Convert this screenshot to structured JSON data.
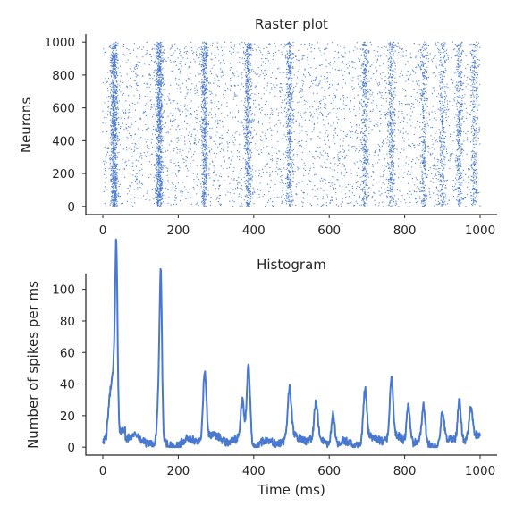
{
  "chart_data": [
    {
      "type": "scatter",
      "title": "Raster plot",
      "xlabel": "",
      "ylabel": "Neurons",
      "xlim": [
        -45,
        1045
      ],
      "ylim": [
        -50,
        1050
      ],
      "xticks": [
        0,
        200,
        400,
        600,
        800,
        1000
      ],
      "yticks": [
        0,
        200,
        400,
        600,
        800,
        1000
      ],
      "color": "#4878cf",
      "n_neurons": 1000,
      "duration_ms": 1000,
      "burst_times_ms": [
        30,
        150,
        270,
        385,
        495,
        695,
        765,
        850,
        900,
        945,
        985
      ],
      "burst_strength": [
        1.0,
        0.9,
        0.6,
        0.55,
        0.45,
        0.4,
        0.4,
        0.3,
        0.3,
        0.35,
        0.3
      ]
    },
    {
      "type": "line",
      "title": "Histogram",
      "xlabel": "Time (ms)",
      "ylabel": "Number of spikes per ms",
      "xlim": [
        -45,
        1045
      ],
      "ylim": [
        -5,
        110
      ],
      "xticks": [
        0,
        200,
        400,
        600,
        800,
        1000
      ],
      "yticks": [
        0,
        20,
        40,
        60,
        80,
        100
      ],
      "color": "#4878cf",
      "baseline": 4,
      "peaks": [
        {
          "x": 20,
          "y": 20
        },
        {
          "x": 30,
          "y": 38
        },
        {
          "x": 36,
          "y": 104
        },
        {
          "x": 150,
          "y": 40
        },
        {
          "x": 154,
          "y": 80
        },
        {
          "x": 270,
          "y": 43
        },
        {
          "x": 370,
          "y": 25
        },
        {
          "x": 386,
          "y": 51
        },
        {
          "x": 495,
          "y": 31
        },
        {
          "x": 565,
          "y": 22
        },
        {
          "x": 610,
          "y": 20
        },
        {
          "x": 695,
          "y": 33
        },
        {
          "x": 765,
          "y": 36
        },
        {
          "x": 810,
          "y": 24
        },
        {
          "x": 850,
          "y": 22
        },
        {
          "x": 900,
          "y": 20
        },
        {
          "x": 945,
          "y": 26
        },
        {
          "x": 975,
          "y": 18
        }
      ]
    }
  ]
}
